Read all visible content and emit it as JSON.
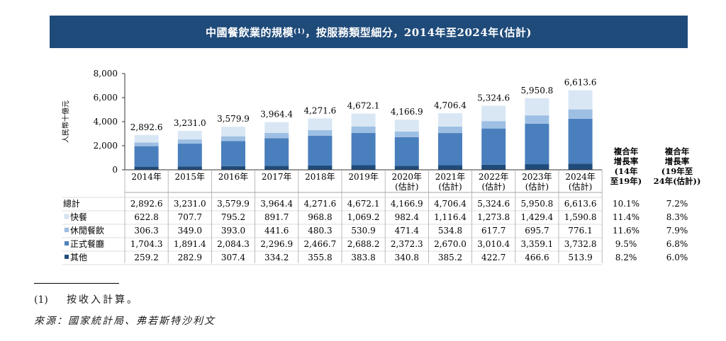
{
  "title": "中國餐飲業的規模",
  "title_sup": "(1)",
  "title_rest": "，按服務類型細分，2014年至2024年(估計)",
  "chart_data": {
    "type": "bar",
    "stacked": true,
    "ylabel": "人民幣十億元",
    "ylim": [
      0,
      8000
    ],
    "yticks": [
      "0",
      "2,000",
      "4,000",
      "6,000",
      "8,000"
    ],
    "categories": [
      [
        "2014年"
      ],
      [
        "2015年"
      ],
      [
        "2016年"
      ],
      [
        "2017年"
      ],
      [
        "2018年"
      ],
      [
        "2019年"
      ],
      [
        "2020年",
        "(估計)"
      ],
      [
        "2021年",
        "(估計)"
      ],
      [
        "2022年",
        "(估計)"
      ],
      [
        "2023年",
        "(估計)"
      ],
      [
        "2024年",
        "(估計)"
      ]
    ],
    "totals": [
      2892.6,
      3231.0,
      3579.9,
      3964.4,
      4271.6,
      4672.1,
      4166.9,
      4706.4,
      5324.6,
      5950.8,
      6613.6
    ],
    "total_labels": [
      "2,892.6",
      "3,231.0",
      "3,579.9",
      "3,964.4",
      "4,271.6",
      "4,672.1",
      "4,166.9",
      "4,706.4",
      "5,324.6",
      "5,950.8",
      "6,613.6"
    ],
    "series": [
      {
        "name": "其他",
        "color": "#1f4b7a",
        "values": [
          259.2,
          282.9,
          307.4,
          334.2,
          355.8,
          383.8,
          340.8,
          385.2,
          422.7,
          466.6,
          513.9
        ]
      },
      {
        "name": "正式餐廳",
        "color": "#4a7fbd",
        "values": [
          1704.3,
          1891.4,
          2084.3,
          2296.9,
          2466.7,
          2688.2,
          2372.3,
          2670.0,
          3010.4,
          3359.1,
          3732.8
        ]
      },
      {
        "name": "休閒餐飲",
        "color": "#9dbfe3",
        "values": [
          306.3,
          349.0,
          393.0,
          441.6,
          480.3,
          530.9,
          471.4,
          534.8,
          617.7,
          695.7,
          776.1
        ]
      },
      {
        "name": "快餐",
        "color": "#d9e7f5",
        "values": [
          622.8,
          707.7,
          795.2,
          891.7,
          968.8,
          1069.2,
          982.4,
          1116.4,
          1273.8,
          1429.4,
          1590.8
        ]
      }
    ],
    "cagr_headers": [
      [
        "複合年",
        "增長率",
        "(14年",
        "至19年)"
      ],
      [
        "複合年",
        "增長率",
        "(19年至",
        "24年(估計))"
      ]
    ],
    "table_rows": [
      {
        "label": "總計",
        "marker": "",
        "values": [
          "2,892.6",
          "3,231.0",
          "3,579.9",
          "3,964.4",
          "4,271.6",
          "4,672.1",
          "4,166.9",
          "4,706.4",
          "5,324.6",
          "5,950.8",
          "6,613.6"
        ],
        "cagr1": "10.1%",
        "cagr2": "7.2%"
      },
      {
        "label": "快餐",
        "marker": "#d9e7f5",
        "values": [
          "622.8",
          "707.7",
          "795.2",
          "891.7",
          "968.8",
          "1,069.2",
          "982.4",
          "1,116.4",
          "1,273.8",
          "1,429.4",
          "1,590.8"
        ],
        "cagr1": "11.4%",
        "cagr2": "8.3%"
      },
      {
        "label": "休閒餐飲",
        "marker": "#9dbfe3",
        "values": [
          "306.3",
          "349.0",
          "393.0",
          "441.6",
          "480.3",
          "530.9",
          "471.4",
          "534.8",
          "617.7",
          "695.7",
          "776.1"
        ],
        "cagr1": "11.6%",
        "cagr2": "7.9%"
      },
      {
        "label": "正式餐廳",
        "marker": "#4a7fbd",
        "values": [
          "1,704.3",
          "1,891.4",
          "2,084.3",
          "2,296.9",
          "2,466.7",
          "2,688.2",
          "2,372.3",
          "2,670.0",
          "3,010.4",
          "3,359.1",
          "3,732.8"
        ],
        "cagr1": "9.5%",
        "cagr2": "6.8%"
      },
      {
        "label": "其他",
        "marker": "#1f4b7a",
        "values": [
          "259.2",
          "282.9",
          "307.4",
          "334.2",
          "355.8",
          "383.8",
          "340.8",
          "385.2",
          "422.7",
          "466.6",
          "513.9"
        ],
        "cagr1": "8.2%",
        "cagr2": "6.0%"
      }
    ]
  },
  "footnote": {
    "num": "(1)",
    "text": "按收入計算。"
  },
  "source": "來源：國家統計局、弗若斯特沙利文"
}
